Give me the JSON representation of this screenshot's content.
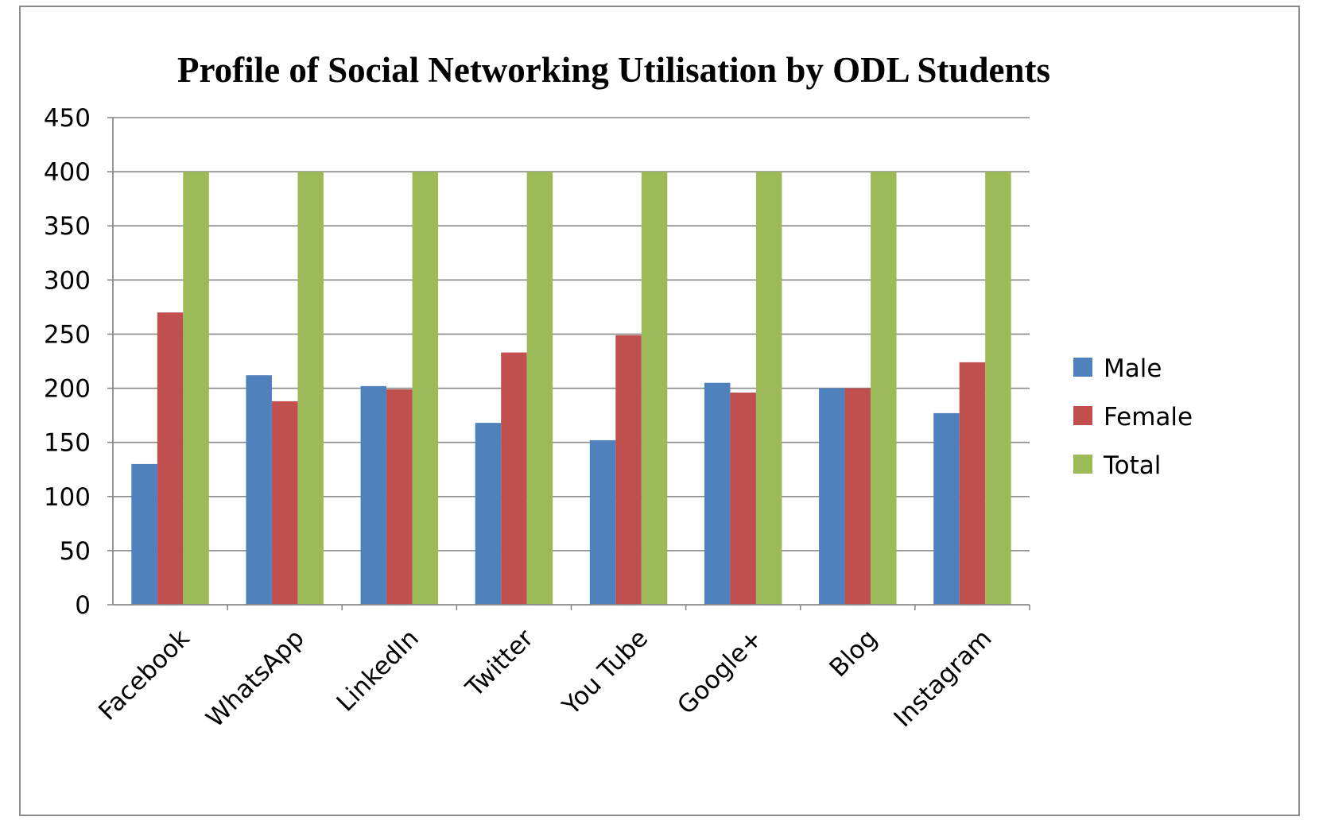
{
  "chart_data": {
    "type": "bar",
    "title": "Profile of Social Networking Utilisation by ODL Students",
    "xlabel": "",
    "ylabel": "",
    "categories": [
      "Facebook",
      "WhatsApp",
      "LinkedIn",
      "Twitter",
      "You Tube",
      "Google+",
      "Blog",
      "Instagram"
    ],
    "series": [
      {
        "name": "Male",
        "color": "#4f81bd",
        "values": [
          130,
          212,
          202,
          168,
          152,
          205,
          200,
          177
        ]
      },
      {
        "name": "Female",
        "color": "#c0504d",
        "values": [
          270,
          188,
          199,
          233,
          249,
          196,
          200,
          224
        ]
      },
      {
        "name": "Total",
        "color": "#9bbb59",
        "values": [
          400,
          400,
          400,
          400,
          400,
          400,
          400,
          400
        ]
      }
    ],
    "ylim": [
      0,
      450
    ],
    "yticks": [
      0,
      50,
      100,
      150,
      200,
      250,
      300,
      350,
      400,
      450
    ],
    "grid": true,
    "legend_position": "right"
  }
}
